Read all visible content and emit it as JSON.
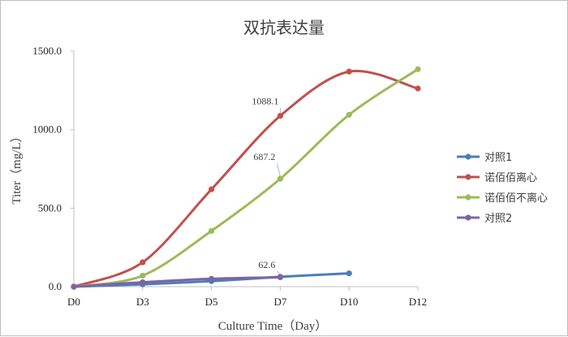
{
  "chart_data": {
    "type": "line",
    "title": "双抗表达量",
    "xlabel": "Culture Time（Day）",
    "ylabel": "Titer（mg/L）",
    "categories": [
      "D0",
      "D3",
      "D5",
      "D7",
      "D10",
      "D12"
    ],
    "ylim": [
      0,
      1500
    ],
    "yticks": [
      "0.0",
      "500.0",
      "1000.0",
      "1500.0"
    ],
    "grid": false,
    "legend_position": "right",
    "series": [
      {
        "name": "对照1",
        "color": "#4a7ebb",
        "values": [
          0,
          15,
          35,
          62.6,
          85,
          null
        ]
      },
      {
        "name": "诺佰佰离心",
        "color": "#c0504d",
        "values": [
          0,
          155,
          620,
          1088.1,
          1370,
          1262
        ]
      },
      {
        "name": "诺佰佰不离心",
        "color": "#9bbb59",
        "values": [
          0,
          70,
          355,
          687.2,
          1095,
          1385
        ]
      },
      {
        "name": "对照2",
        "color": "#8064a2",
        "values": [
          0,
          28,
          50,
          60,
          null,
          null
        ]
      }
    ],
    "annotations": [
      {
        "text": "1088.1",
        "series": 1,
        "category": "D7"
      },
      {
        "text": "687.2",
        "series": 2,
        "category": "D7"
      },
      {
        "text": "62.6",
        "series": 0,
        "category": "D7"
      }
    ]
  }
}
